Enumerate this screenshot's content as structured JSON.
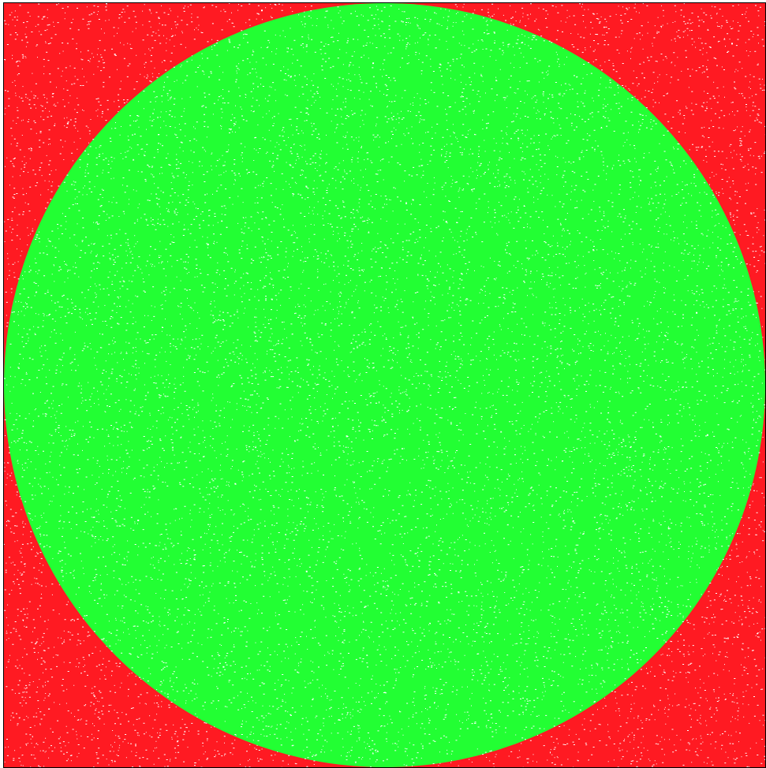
{
  "chart_data": {
    "type": "scatter",
    "title": "",
    "xlabel": "",
    "ylabel": "",
    "xlim": [
      -1,
      1
    ],
    "ylim": [
      -1,
      1
    ],
    "grid": false,
    "legend": "none",
    "description_of_marks": "",
    "series": [
      {
        "region": "inside-circle",
        "color": "#22ff33"
      },
      {
        "region": "outside-circle",
        "color": "#ff1a22"
      }
    ],
    "circle": {
      "center": [
        0,
        0
      ],
      "radius": 1
    },
    "background_color": "#ffffff",
    "frame_color": "#000000"
  }
}
